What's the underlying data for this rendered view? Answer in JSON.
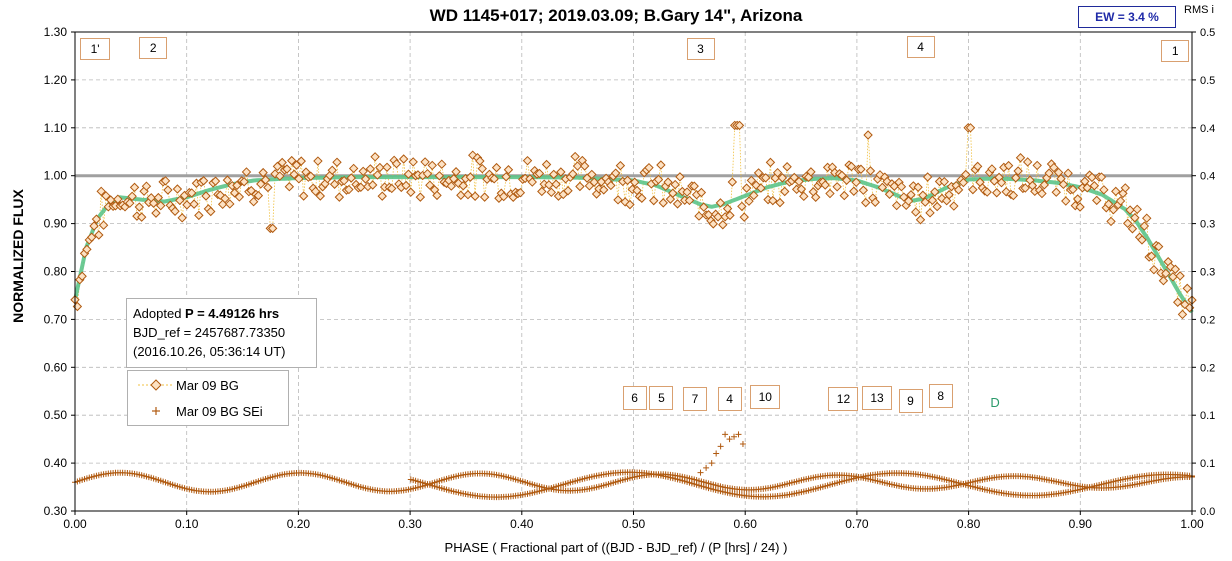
{
  "chart_data": {
    "type": "scatter",
    "title": "WD 1145+017; 2019.03.09; B.Gary 14\",  Arizona",
    "xlabel": "PHASE ( Fractional part of ((BJD - BJD_ref) / (P [hrs] / 24) )",
    "ylabel": "NORMALIZED FLUX",
    "y2label": "RMS i",
    "xlim": [
      0,
      1
    ],
    "ylim": [
      0.3,
      1.3
    ],
    "y2lim": [
      0,
      0.5
    ],
    "x_ticks": [
      "0.00",
      "0.10",
      "0.20",
      "0.30",
      "0.40",
      "0.50",
      "0.60",
      "0.70",
      "0.80",
      "0.90",
      "1.00"
    ],
    "y_ticks": [
      "0.30",
      "0.40",
      "0.50",
      "0.60",
      "0.70",
      "0.80",
      "0.90",
      "1.00",
      "1.10",
      "1.20",
      "1.30"
    ],
    "y2_ticks": [
      "0.0",
      "0.1",
      "0.1",
      "0.2",
      "0.2",
      "0.3",
      "0.3",
      "0.4",
      "0.4",
      "0.5",
      "0.5"
    ],
    "grid": true,
    "reference_line": 1.0,
    "ew_label": "EW =  3.4 %",
    "info": {
      "line1_prefix": "Adopted ",
      "line1_bold": "P = 4.49126 hrs",
      "line2": "BJD_ref = 2457687.73350",
      "line3": "(2016.10.26, 05:36:14 UT)"
    },
    "legend": [
      {
        "name": "Mar 09 BG",
        "marker": "diamond",
        "line": "dotted"
      },
      {
        "name": "Mar 09 BG SEi",
        "marker": "plus"
      }
    ],
    "colors": {
      "data": "#b05a10",
      "data_fill": "#fde2c4",
      "dotted": "#f0c040",
      "model": "#5cc48a",
      "grid": "#b8b8b8",
      "annotation_border": "#d9a070",
      "annotation_D": "#2a9a6a",
      "ew_border": "#1f2a9a"
    },
    "annotations_top": [
      {
        "label": "1'",
        "x": 0.018
      },
      {
        "label": "2",
        "x": 0.07
      },
      {
        "label": "3",
        "x": 0.56
      },
      {
        "label": "4",
        "x": 0.757
      },
      {
        "label": "1",
        "x": 0.985
      }
    ],
    "annotations_mid": [
      {
        "label": "6",
        "x": 0.501
      },
      {
        "label": "5",
        "x": 0.525
      },
      {
        "label": "7",
        "x": 0.555
      },
      {
        "label": "4",
        "x": 0.586
      },
      {
        "label": "10",
        "x": 0.618
      },
      {
        "label": "12",
        "x": 0.688
      },
      {
        "label": "13",
        "x": 0.718
      },
      {
        "label": "9",
        "x": 0.748
      },
      {
        "label": "8",
        "x": 0.775
      },
      {
        "label": "D",
        "x": 0.824
      }
    ],
    "model_curve": {
      "x": [
        0.0,
        0.01,
        0.02,
        0.03,
        0.04,
        0.06,
        0.08,
        0.1,
        0.12,
        0.14,
        0.16,
        0.18,
        0.2,
        0.25,
        0.3,
        0.35,
        0.4,
        0.45,
        0.5,
        0.52,
        0.54,
        0.56,
        0.57,
        0.58,
        0.6,
        0.62,
        0.64,
        0.66,
        0.68,
        0.7,
        0.72,
        0.74,
        0.75,
        0.76,
        0.78,
        0.8,
        0.82,
        0.84,
        0.86,
        0.88,
        0.9,
        0.92,
        0.94,
        0.95,
        0.96,
        0.97,
        0.98,
        0.99,
        1.0
      ],
      "y": [
        0.74,
        0.85,
        0.91,
        0.94,
        0.955,
        0.95,
        0.946,
        0.955,
        0.97,
        0.982,
        0.99,
        0.993,
        0.995,
        0.997,
        0.997,
        0.997,
        0.997,
        0.996,
        0.99,
        0.98,
        0.96,
        0.94,
        0.935,
        0.94,
        0.958,
        0.976,
        0.988,
        0.993,
        0.995,
        0.99,
        0.975,
        0.955,
        0.948,
        0.952,
        0.975,
        0.992,
        0.994,
        0.993,
        0.99,
        0.985,
        0.976,
        0.96,
        0.93,
        0.905,
        0.87,
        0.83,
        0.79,
        0.75,
        0.715
      ]
    }
  }
}
